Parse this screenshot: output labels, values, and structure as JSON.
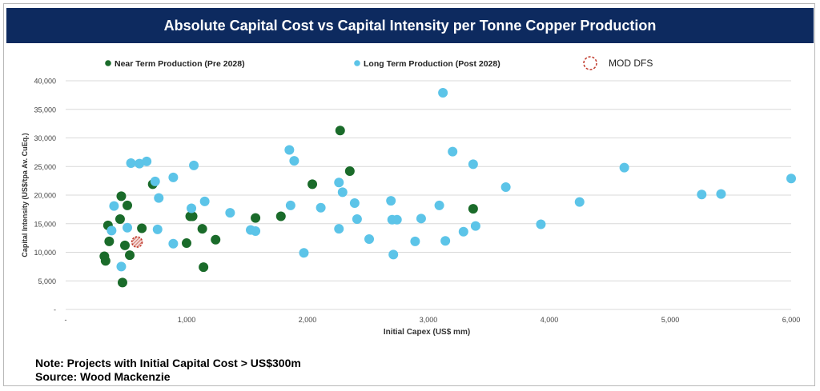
{
  "title": "Absolute Capital Cost vs Capital Intensity per Tonne Copper Production",
  "notes": {
    "line1": "Note: Projects with Initial Capital Cost > US$300m",
    "line2": "Source: Wood Mackenzie"
  },
  "chart_data": {
    "type": "scatter",
    "title": "Absolute Capital Cost vs Capital Intensity per Tonne Copper Production",
    "xlabel": "Initial Capex (US$ mm)",
    "ylabel": "Capital Intensity (US$/tpa Av. CuEq.)",
    "xlim": [
      0,
      6000
    ],
    "ylim": [
      0,
      40000
    ],
    "x_ticks": [
      "-",
      "1,000",
      "2,000",
      "3,000",
      "4,000",
      "5,000",
      "6,000"
    ],
    "y_ticks": [
      "-",
      "5,000",
      "10,000",
      "15,000",
      "20,000",
      "25,000",
      "30,000",
      "35,000",
      "40,000"
    ],
    "grid": "horizontal",
    "legend_position": "top",
    "series": [
      {
        "name": "Near Term Production (Pre 2028)",
        "color": "#1a6b2a",
        "marker": "filled-circle",
        "points": [
          [
            320,
            9300
          ],
          [
            330,
            8500
          ],
          [
            350,
            14700
          ],
          [
            360,
            11900
          ],
          [
            460,
            19800
          ],
          [
            470,
            4700
          ],
          [
            490,
            11200
          ],
          [
            510,
            18200
          ],
          [
            530,
            9500
          ],
          [
            450,
            15800
          ],
          [
            630,
            14200
          ],
          [
            720,
            21900
          ],
          [
            1000,
            11600
          ],
          [
            1030,
            16300
          ],
          [
            1050,
            16300
          ],
          [
            1130,
            14100
          ],
          [
            1140,
            7400
          ],
          [
            1240,
            12200
          ],
          [
            1570,
            16000
          ],
          [
            1780,
            16300
          ],
          [
            2040,
            21900
          ],
          [
            2270,
            31300
          ],
          [
            2350,
            24200
          ],
          [
            3370,
            17600
          ]
        ]
      },
      {
        "name": "Long Term Production (Post 2028)",
        "color": "#5cc4e8",
        "marker": "filled-circle",
        "points": [
          [
            380,
            13800
          ],
          [
            400,
            18100
          ],
          [
            460,
            7500
          ],
          [
            510,
            14300
          ],
          [
            540,
            25600
          ],
          [
            610,
            25500
          ],
          [
            670,
            25900
          ],
          [
            740,
            22400
          ],
          [
            760,
            14000
          ],
          [
            770,
            19500
          ],
          [
            890,
            11500
          ],
          [
            890,
            23100
          ],
          [
            1040,
            17700
          ],
          [
            1060,
            25200
          ],
          [
            1150,
            18900
          ],
          [
            1360,
            16900
          ],
          [
            1530,
            13900
          ],
          [
            1570,
            13700
          ],
          [
            1850,
            27900
          ],
          [
            1860,
            18200
          ],
          [
            1890,
            26000
          ],
          [
            1970,
            9900
          ],
          [
            2110,
            17800
          ],
          [
            2260,
            22200
          ],
          [
            2260,
            14100
          ],
          [
            2290,
            20500
          ],
          [
            2390,
            18600
          ],
          [
            2410,
            15800
          ],
          [
            2510,
            12300
          ],
          [
            2690,
            19000
          ],
          [
            2700,
            15700
          ],
          [
            2710,
            9600
          ],
          [
            2740,
            15700
          ],
          [
            2890,
            11900
          ],
          [
            2940,
            15900
          ],
          [
            3090,
            18200
          ],
          [
            3120,
            37900
          ],
          [
            3140,
            12000
          ],
          [
            3200,
            27600
          ],
          [
            3290,
            13600
          ],
          [
            3370,
            25400
          ],
          [
            3390,
            14600
          ],
          [
            3640,
            21400
          ],
          [
            3930,
            14900
          ],
          [
            4250,
            18800
          ],
          [
            4620,
            24800
          ],
          [
            5260,
            20100
          ],
          [
            5420,
            20200
          ],
          [
            6000,
            22900
          ]
        ]
      },
      {
        "name": "MOD DFS",
        "color": "#c0392b",
        "marker": "hatched-dashed-circle",
        "points": [
          [
            590,
            11800
          ]
        ]
      }
    ]
  }
}
